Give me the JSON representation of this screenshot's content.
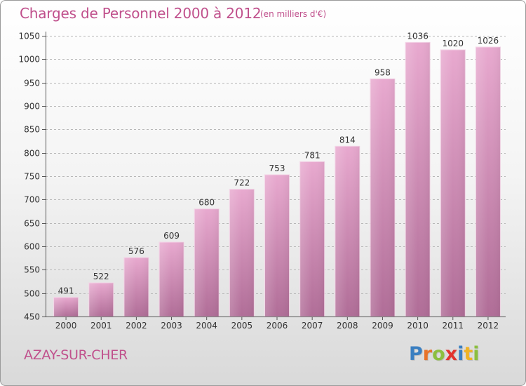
{
  "header": {
    "title": "Charges de Personnel 2000 à 2012",
    "subtitle": "(en milliers d'€)"
  },
  "footer": {
    "place": "AZAY-SUR-CHER",
    "logo_text": "Proxiti",
    "logo_letters": [
      "P",
      "r",
      "o",
      "x",
      "i",
      "t",
      "i"
    ],
    "logo_colors": [
      "#3a7fc1",
      "#e8732a",
      "#8cbf3f",
      "#e2332e",
      "#3a7fc1",
      "#f0b323",
      "#8cbf3f"
    ]
  },
  "colors": {
    "accent": "#c0508c",
    "bar_top": "#e8a9cf",
    "bar_bottom": "#b06d97",
    "grid": "#b8b8b8"
  },
  "chart_data": {
    "type": "bar",
    "categories": [
      "2000",
      "2001",
      "2002",
      "2003",
      "2004",
      "2005",
      "2006",
      "2007",
      "2008",
      "2009",
      "2010",
      "2011",
      "2012"
    ],
    "values": [
      491,
      522,
      576,
      609,
      680,
      722,
      753,
      781,
      814,
      958,
      1036,
      1020,
      1026
    ],
    "data_labels": [
      "491",
      "522",
      "576",
      "609",
      "680",
      "722",
      "753",
      "781",
      "814",
      "958",
      "1036",
      "1020",
      "1026"
    ],
    "yticks": [
      450,
      500,
      550,
      600,
      650,
      700,
      750,
      800,
      850,
      900,
      950,
      1000,
      1050
    ],
    "ylim": [
      450,
      1050
    ],
    "grid": true,
    "gridlines": "horizontal dashed"
  }
}
